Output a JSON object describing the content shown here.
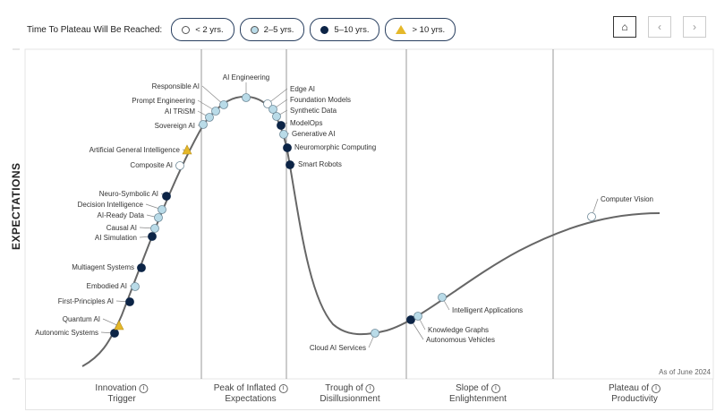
{
  "legend": {
    "title": "Time To Plateau Will Be Reached:",
    "items": [
      {
        "label": "< 2 yrs.",
        "type": "lt2",
        "color": "#ffffff"
      },
      {
        "label": "2–5 yrs.",
        "type": "2to5",
        "color": "#b9dbe8"
      },
      {
        "label": "5–10 yrs.",
        "type": "5to10",
        "color": "#0c2446"
      },
      {
        "label": "> 10 yrs.",
        "type": "gt10",
        "color": "#e5b82a"
      }
    ]
  },
  "nav": {
    "home": "⌂",
    "prev": "‹",
    "next": "›"
  },
  "y_axis_label": "EXPECTATIONS",
  "as_of": "As of June 2024",
  "phases": [
    {
      "line1": "Innovation",
      "line2": "Trigger"
    },
    {
      "line1": "Peak of Inflated",
      "line2": "Expectations"
    },
    {
      "line1": "Trough of",
      "line2": "Disillusionment"
    },
    {
      "line1": "Slope of",
      "line2": "Enlightenment"
    },
    {
      "line1": "Plateau of",
      "line2": "Productivity"
    }
  ],
  "technologies": [
    {
      "name": "Autonomic Systems",
      "type": "5to10"
    },
    {
      "name": "Quantum AI",
      "type": "gt10"
    },
    {
      "name": "First-Principles AI",
      "type": "5to10"
    },
    {
      "name": "Embodied AI",
      "type": "2to5"
    },
    {
      "name": "Multiagent Systems",
      "type": "5to10"
    },
    {
      "name": "AI Simulation",
      "type": "5to10"
    },
    {
      "name": "Causal AI",
      "type": "2to5"
    },
    {
      "name": "AI-Ready Data",
      "type": "2to5"
    },
    {
      "name": "Decision Intelligence",
      "type": "2to5"
    },
    {
      "name": "Neuro-Symbolic AI",
      "type": "5to10"
    },
    {
      "name": "Composite AI",
      "type": "lt2"
    },
    {
      "name": "Artificial General Intelligence",
      "type": "gt10"
    },
    {
      "name": "Sovereign AI",
      "type": "2to5"
    },
    {
      "name": "AI TRiSM",
      "type": "2to5"
    },
    {
      "name": "Prompt Engineering",
      "type": "2to5"
    },
    {
      "name": "Responsible AI",
      "type": "2to5"
    },
    {
      "name": "AI Engineering",
      "type": "2to5"
    },
    {
      "name": "Edge AI",
      "type": "lt2"
    },
    {
      "name": "Foundation Models",
      "type": "2to5"
    },
    {
      "name": "Synthetic Data",
      "type": "2to5"
    },
    {
      "name": "ModelOps",
      "type": "5to10"
    },
    {
      "name": "Generative AI",
      "type": "2to5"
    },
    {
      "name": "Neuromorphic Computing",
      "type": "5to10"
    },
    {
      "name": "Smart Robots",
      "type": "5to10"
    },
    {
      "name": "Cloud AI Services",
      "type": "2to5"
    },
    {
      "name": "Autonomous Vehicles",
      "type": "5to10"
    },
    {
      "name": "Knowledge Graphs",
      "type": "2to5"
    },
    {
      "name": "Intelligent Applications",
      "type": "2to5"
    },
    {
      "name": "Computer Vision",
      "type": "lt2"
    }
  ]
}
